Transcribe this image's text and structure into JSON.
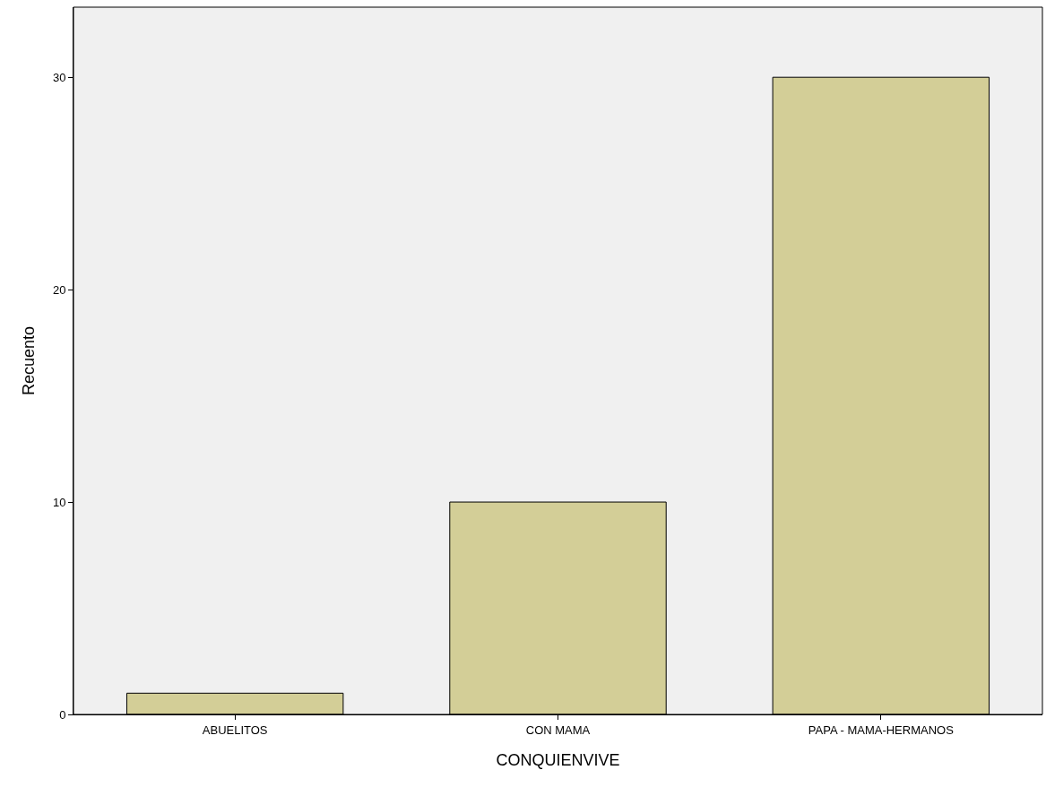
{
  "chart_data": {
    "type": "bar",
    "xlabel": "CONQUIENVIVE",
    "ylabel": "Recuento",
    "categories": [
      "ABUELITOS",
      "CON MAMA",
      "PAPA - MAMA-HERMANOS"
    ],
    "values": [
      1,
      10,
      30
    ],
    "color": "#d3ce97",
    "ylim": [
      0,
      33.3
    ],
    "yticks": [
      0,
      10,
      20,
      30
    ],
    "grid": false,
    "legend": false
  }
}
